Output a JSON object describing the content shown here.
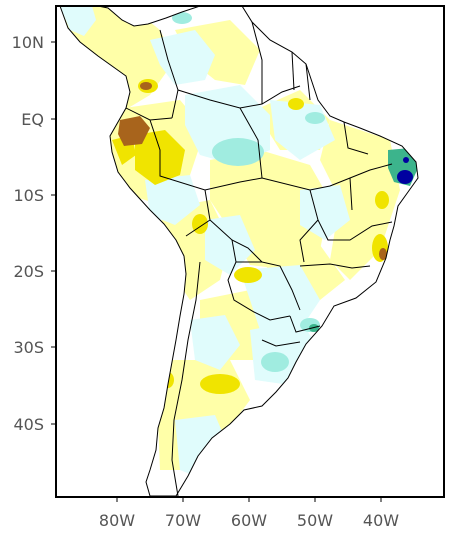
{
  "map": {
    "region": "South America",
    "colors": {
      "frame": "#000000",
      "ocean": "#ffffff",
      "land_neutral": "#ffffff",
      "pale_yellow": "#ffffa8",
      "yellow": "#f0e400",
      "brown": "#a8641c",
      "pale_cyan": "#e0fcfc",
      "cyan": "#a0ece0",
      "green": "#3cb48c",
      "dark_blue": "#0000a0",
      "border": "#000000",
      "label": "#555555"
    },
    "lat_labels": [
      "10N",
      "EQ",
      "10S",
      "20S",
      "30S",
      "40S"
    ],
    "lon_labels": [
      "80W",
      "70W",
      "60W",
      "50W",
      "40W"
    ]
  }
}
